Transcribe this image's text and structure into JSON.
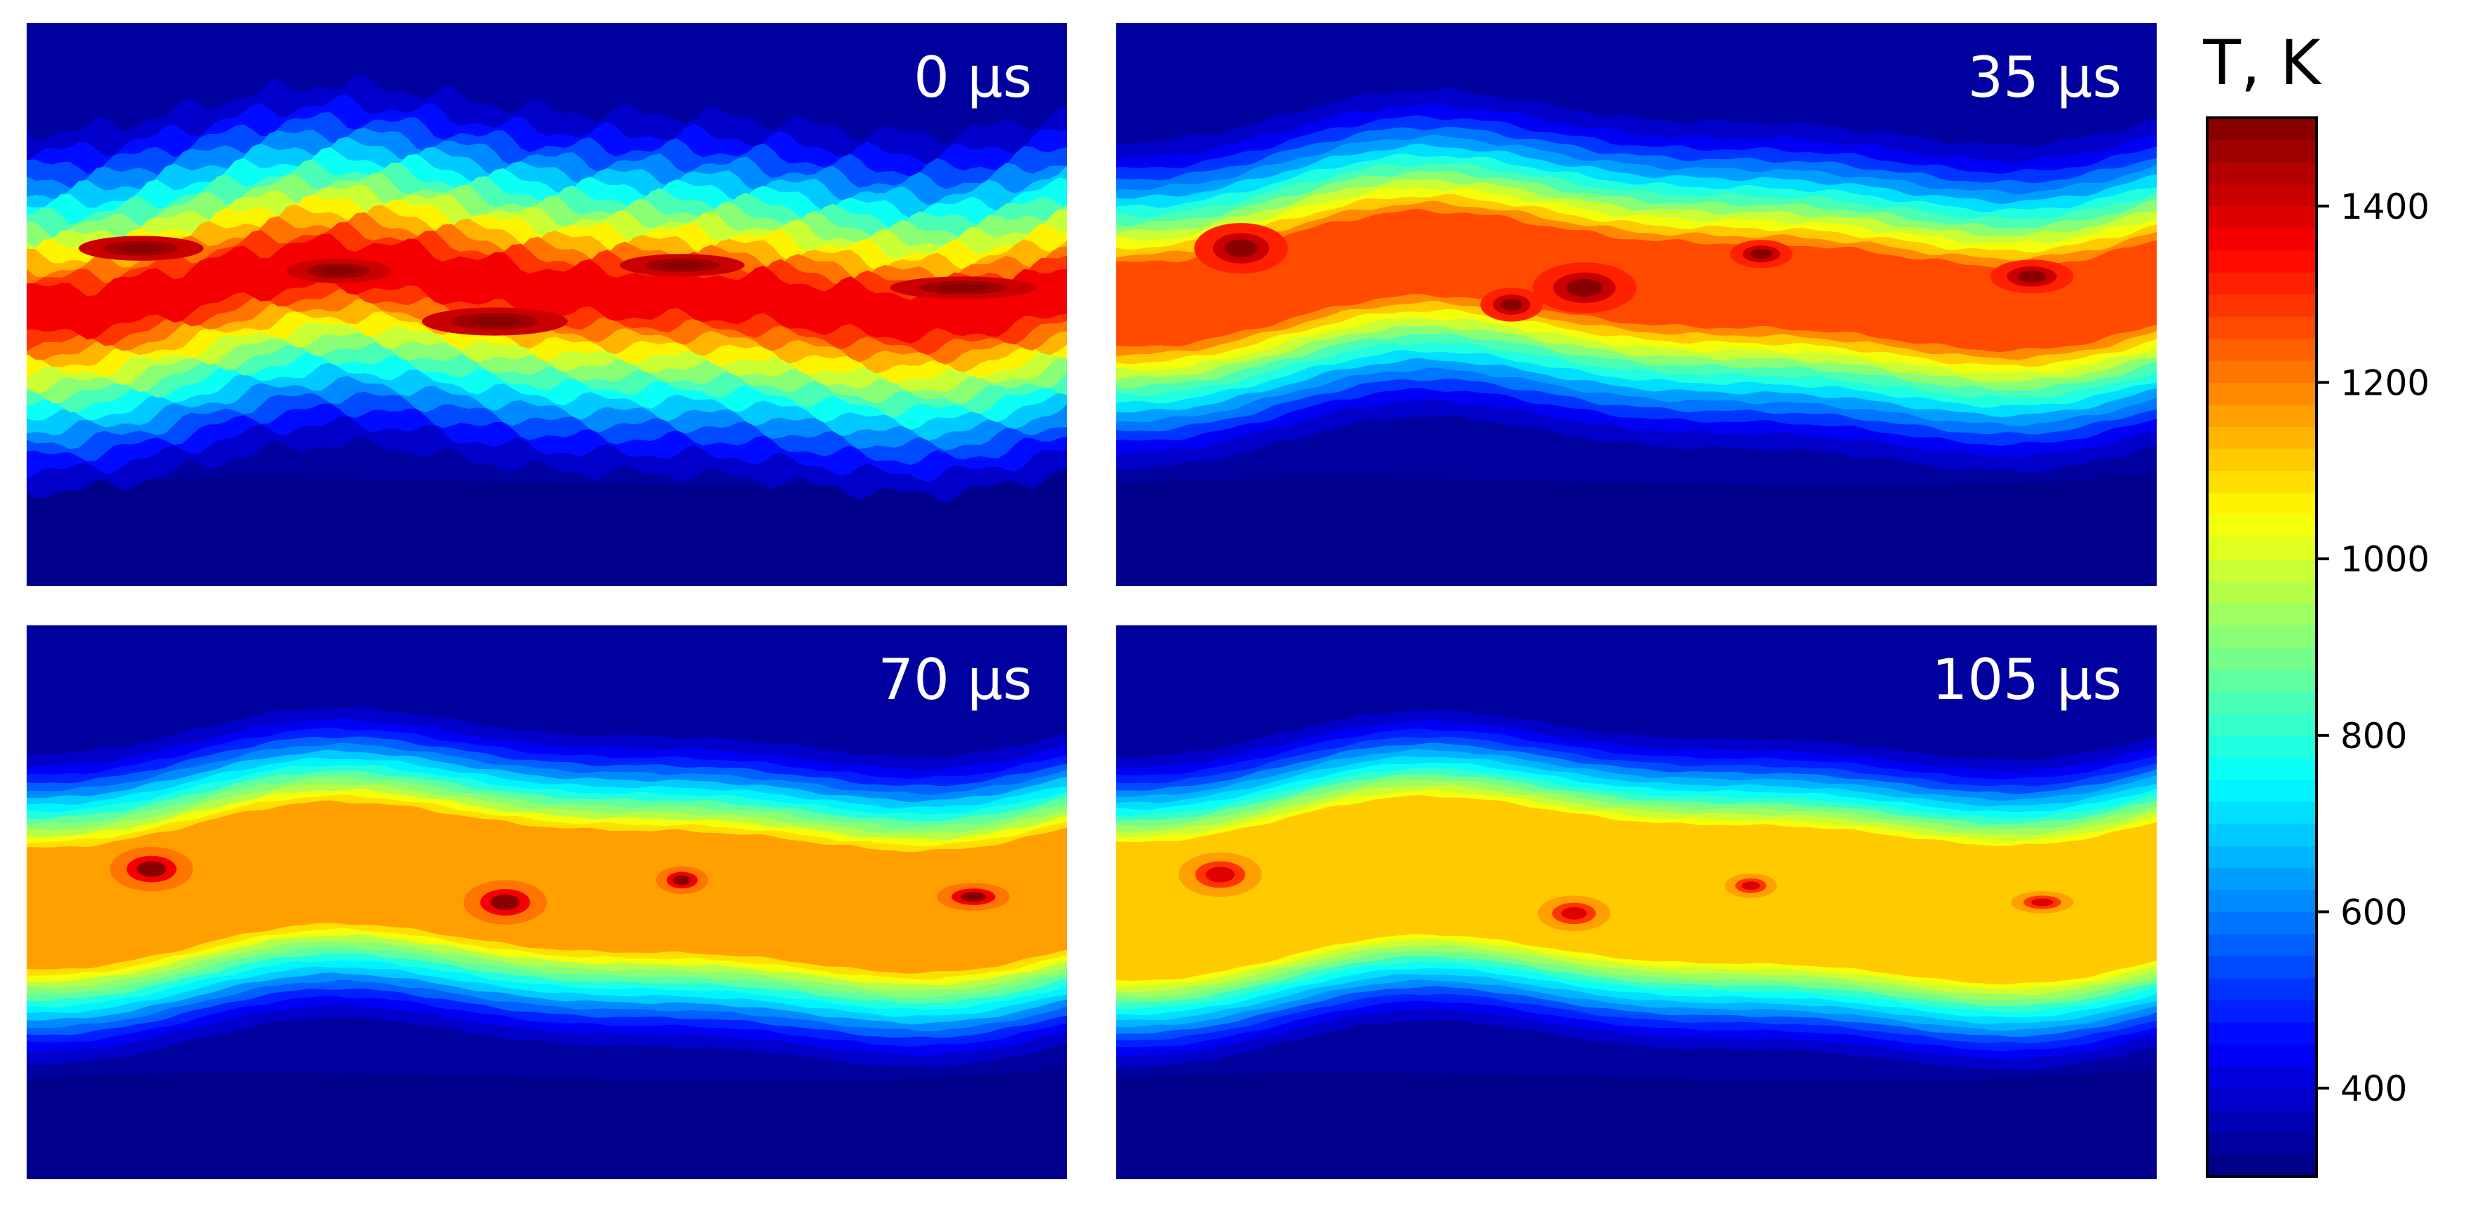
{
  "chart_data": {
    "type": "heatmap",
    "colorbar": {
      "title": "T, K",
      "min": 300,
      "max": 1500,
      "levels": 48,
      "ticks": [
        400,
        600,
        800,
        1000,
        1200,
        1400
      ],
      "colormap": "jet"
    },
    "panels": [
      {
        "label": "0 μs",
        "peak_temperature": 1500,
        "band_temperature": 1350
      },
      {
        "label": "35 μs",
        "peak_temperature": 1500,
        "band_temperature": 1250
      },
      {
        "label": "70 μs",
        "peak_temperature": 1480,
        "band_temperature": 1150
      },
      {
        "label": "105 μs",
        "peak_temperature": 1380,
        "band_temperature": 1100
      }
    ],
    "background_temperature": 340,
    "grid": false,
    "colorbar_placement": "right"
  }
}
